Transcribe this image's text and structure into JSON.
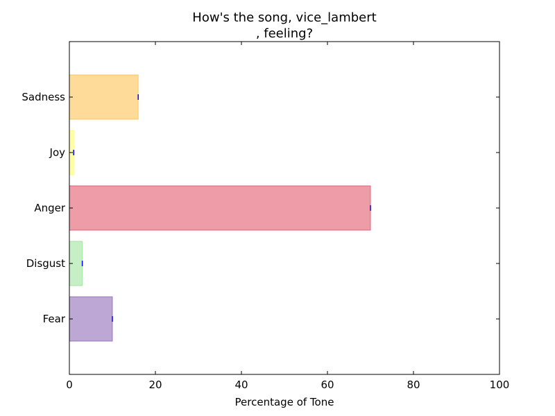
{
  "chart_data": {
    "type": "bar",
    "orientation": "horizontal",
    "title_lines": [
      "How's the song, vice_lambert",
      ", feeling?"
    ],
    "xlabel": "Percentage of Tone",
    "ylabel": "",
    "xlim": [
      0,
      100
    ],
    "xticks": [
      "0",
      "20",
      "40",
      "60",
      "80",
      "100"
    ],
    "grid": false,
    "legend": "none",
    "categories": [
      "Fear",
      "Disgust",
      "Anger",
      "Joy",
      "Sadness"
    ],
    "values": [
      10,
      3,
      70,
      1,
      16
    ],
    "colors": [
      "#7b52ab",
      "#8ee08e",
      "#dc3a52",
      "#ffff55",
      "#ffb733"
    ],
    "error_marker_color": "#0000ff"
  }
}
